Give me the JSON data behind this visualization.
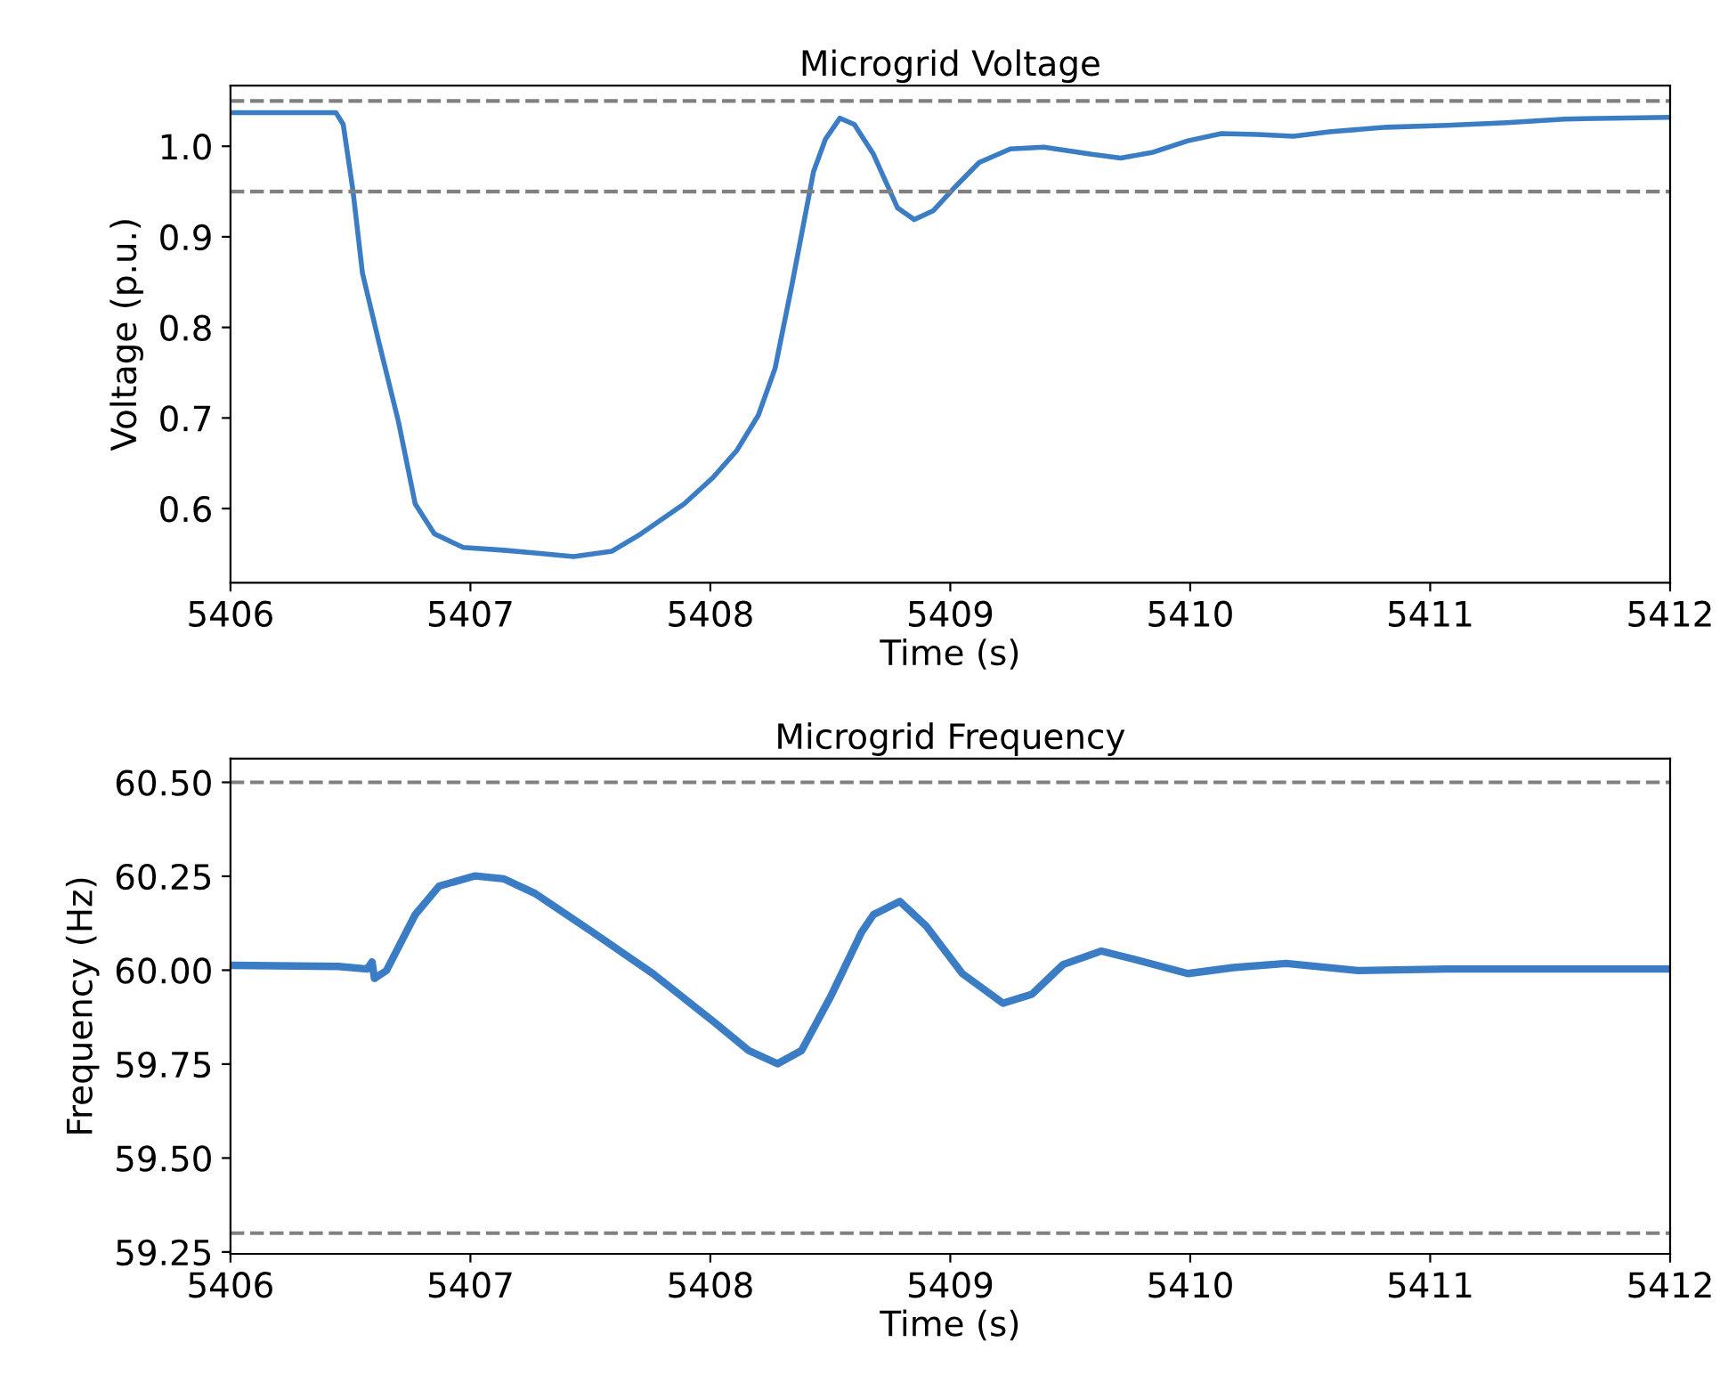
{
  "chart_data": [
    {
      "type": "line",
      "title": "Microgrid Voltage",
      "xlabel": "Time (s)",
      "ylabel": "Voltage (p.u.)",
      "xlim": [
        5406,
        5412
      ],
      "xticks": [
        5406,
        5407,
        5408,
        5409,
        5410,
        5411,
        5412
      ],
      "ylim": [
        0.518,
        1.067
      ],
      "yticks": [
        {
          "value": 0.6,
          "label": "0.6"
        },
        {
          "value": 0.7,
          "label": "0.7"
        },
        {
          "value": 0.8,
          "label": "0.8"
        },
        {
          "value": 0.9,
          "label": "0.9"
        },
        {
          "value": 1.0,
          "label": "1.0"
        }
      ],
      "grid": false,
      "ref_lines": [
        {
          "axis": "y",
          "value": 1.05,
          "color": "#808080",
          "line_style": "dashed"
        },
        {
          "axis": "y",
          "value": 0.95,
          "color": "#808080",
          "line_style": "dashed"
        }
      ],
      "series": [
        {
          "color": "#3b7dc4",
          "x": [
            5406,
            5406.44,
            5406.47,
            5406.51,
            5406.55,
            5406.62,
            5406.7,
            5406.77,
            5406.85,
            5406.97,
            5407.14,
            5407.27,
            5407.43,
            5407.59,
            5407.71,
            5407.89,
            5408.01,
            5408.11,
            5408.2,
            5408.27,
            5408.34,
            5408.43,
            5408.48,
            5408.54,
            5408.6,
            5408.68,
            5408.78,
            5408.85,
            5408.93,
            5409.02,
            5409.12,
            5409.25,
            5409.39,
            5409.59,
            5409.71,
            5409.84,
            5409.99,
            5410.13,
            5410.28,
            5410.43,
            5410.58,
            5410.82,
            5411.07,
            5411.32,
            5411.56,
            5412
          ],
          "values": [
            1.037,
            1.037,
            1.024,
            0.952,
            0.86,
            0.782,
            0.696,
            0.605,
            0.572,
            0.557,
            0.554,
            0.551,
            0.547,
            0.553,
            0.572,
            0.605,
            0.634,
            0.664,
            0.703,
            0.755,
            0.847,
            0.972,
            1.008,
            1.031,
            1.024,
            0.991,
            0.932,
            0.919,
            0.929,
            0.955,
            0.982,
            0.997,
            0.999,
            0.991,
            0.987,
            0.993,
            1.006,
            1.014,
            1.013,
            1.011,
            1.016,
            1.021,
            1.023,
            1.026,
            1.03,
            1.032
          ]
        }
      ]
    },
    {
      "type": "line",
      "title": "Microgrid Frequency",
      "xlabel": "Time (s)",
      "ylabel": "Frequency (Hz)",
      "xlim": [
        5406,
        5412
      ],
      "xticks": [
        5406,
        5407,
        5408,
        5409,
        5410,
        5411,
        5412
      ],
      "ylim": [
        59.245,
        60.563
      ],
      "yticks": [
        {
          "value": 59.25,
          "label": "59.25"
        },
        {
          "value": 59.5,
          "label": "59.50"
        },
        {
          "value": 59.75,
          "label": "59.75"
        },
        {
          "value": 60.0,
          "label": "60.00"
        },
        {
          "value": 60.25,
          "label": "60.25"
        },
        {
          "value": 60.5,
          "label": "60.50"
        }
      ],
      "grid": false,
      "ref_lines": [
        {
          "axis": "y",
          "value": 60.5,
          "color": "#808080",
          "line_style": "dashed"
        },
        {
          "axis": "y",
          "value": 59.3,
          "color": "#808080",
          "line_style": "dashed"
        }
      ],
      "series": [
        {
          "color": "#3b7dc4",
          "x": [
            5406,
            5406.45,
            5406.57,
            5406.59,
            5406.6,
            5406.65,
            5406.77,
            5406.87,
            5407.02,
            5407.14,
            5407.27,
            5407.51,
            5407.76,
            5408.01,
            5408.16,
            5408.28,
            5408.38,
            5408.5,
            5408.63,
            5408.68,
            5408.79,
            5408.9,
            5409.05,
            5409.22,
            5409.34,
            5409.47,
            5409.63,
            5409.76,
            5409.99,
            5410.18,
            5410.4,
            5410.7,
            5411.07,
            5411.44,
            5412
          ],
          "values": [
            60.013,
            60.01,
            60.003,
            60.022,
            59.978,
            59.999,
            60.148,
            60.224,
            60.251,
            60.243,
            60.204,
            60.101,
            59.991,
            59.865,
            59.786,
            59.751,
            59.786,
            59.928,
            60.101,
            60.148,
            60.183,
            60.117,
            59.991,
            59.912,
            59.936,
            60.015,
            60.051,
            60.03,
            59.991,
            60.007,
            60.018,
            59.999,
            60.003,
            60.003,
            60.003
          ]
        }
      ]
    }
  ]
}
